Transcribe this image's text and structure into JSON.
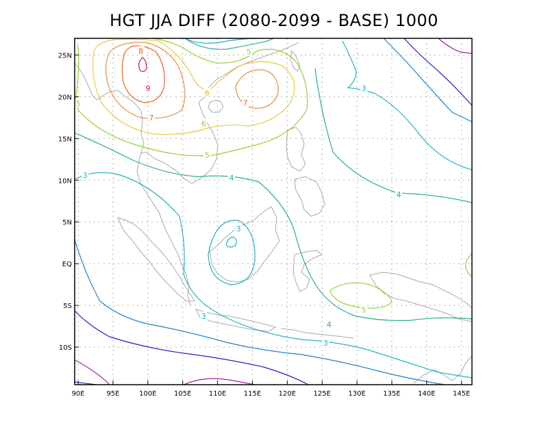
{
  "title": "HGT JJA DIFF (2080-2099 - BASE) 1000",
  "map": {
    "lon_range": [
      89.5,
      146.5
    ],
    "lat_range": [
      -14.5,
      27.0
    ],
    "lon_ticks": [
      {
        "value": 90,
        "label": "90E"
      },
      {
        "value": 95,
        "label": "95E"
      },
      {
        "value": 100,
        "label": "100E"
      },
      {
        "value": 105,
        "label": "105E"
      },
      {
        "value": 110,
        "label": "110E"
      },
      {
        "value": 115,
        "label": "115E"
      },
      {
        "value": 120,
        "label": "120E"
      },
      {
        "value": 125,
        "label": "125E"
      },
      {
        "value": 130,
        "label": "130E"
      },
      {
        "value": 135,
        "label": "135E"
      },
      {
        "value": 140,
        "label": "140E"
      },
      {
        "value": 145,
        "label": "145E"
      }
    ],
    "lat_ticks": [
      {
        "value": 25,
        "label": "25N"
      },
      {
        "value": 20,
        "label": "20N"
      },
      {
        "value": 15,
        "label": "15N"
      },
      {
        "value": 10,
        "label": "10N"
      },
      {
        "value": 5,
        "label": "5N"
      },
      {
        "value": 0,
        "label": "EQ"
      },
      {
        "value": -5,
        "label": "5S"
      },
      {
        "value": -10,
        "label": "10S"
      }
    ],
    "contour_labels": [
      {
        "text": "9",
        "lon": 100.0,
        "lat": 21.0,
        "color": "#d0104c"
      },
      {
        "text": "8",
        "lon": 99.0,
        "lat": 25.5,
        "color": "#e86020"
      },
      {
        "text": "7",
        "lon": 100.5,
        "lat": 17.5,
        "color": "#e86020"
      },
      {
        "text": "7",
        "lon": 114.0,
        "lat": 19.3,
        "color": "#e86020"
      },
      {
        "text": "6",
        "lon": 108.5,
        "lat": 20.5,
        "color": "#d8b820"
      },
      {
        "text": "6",
        "lon": 108.0,
        "lat": 16.8,
        "color": "#d8b820"
      },
      {
        "text": "5",
        "lon": 90.0,
        "lat": 19.2,
        "color": "#9acd32"
      },
      {
        "text": "5",
        "lon": 114.5,
        "lat": 25.4,
        "color": "#9acd32"
      },
      {
        "text": "5",
        "lon": 108.5,
        "lat": 13.0,
        "color": "#9acd32"
      },
      {
        "text": "5",
        "lon": 131.0,
        "lat": -5.5,
        "color": "#9acd32"
      },
      {
        "text": "4",
        "lon": 112.0,
        "lat": 10.3,
        "color": "#20b090"
      },
      {
        "text": "4",
        "lon": 136.0,
        "lat": 8.3,
        "color": "#20b090"
      },
      {
        "text": "4",
        "lon": 126.0,
        "lat": -7.3,
        "color": "#20b090"
      },
      {
        "text": "3",
        "lon": 91.0,
        "lat": 10.6,
        "color": "#20b0c0"
      },
      {
        "text": "3",
        "lon": 131.0,
        "lat": 21.0,
        "color": "#20b0c0"
      },
      {
        "text": "3",
        "lon": 113.0,
        "lat": 4.2,
        "color": "#20b0c0"
      },
      {
        "text": "3",
        "lon": 108.0,
        "lat": -6.3,
        "color": "#20b0c0"
      },
      {
        "text": "3",
        "lon": 125.5,
        "lat": -9.5,
        "color": "#20b0c0"
      }
    ]
  },
  "colors": {
    "c9": "#d0104c",
    "c8": "#e86020",
    "c7": "#f08c3c",
    "c6": "#e8c83c",
    "c5": "#9acd32",
    "c4": "#20b090",
    "c3": "#20b0c0",
    "c2": "#1a80d0",
    "c1": "#2020c0",
    "c0": "#a020a0",
    "coast": "#a8a8a8",
    "grid": "#b0b0b0"
  }
}
